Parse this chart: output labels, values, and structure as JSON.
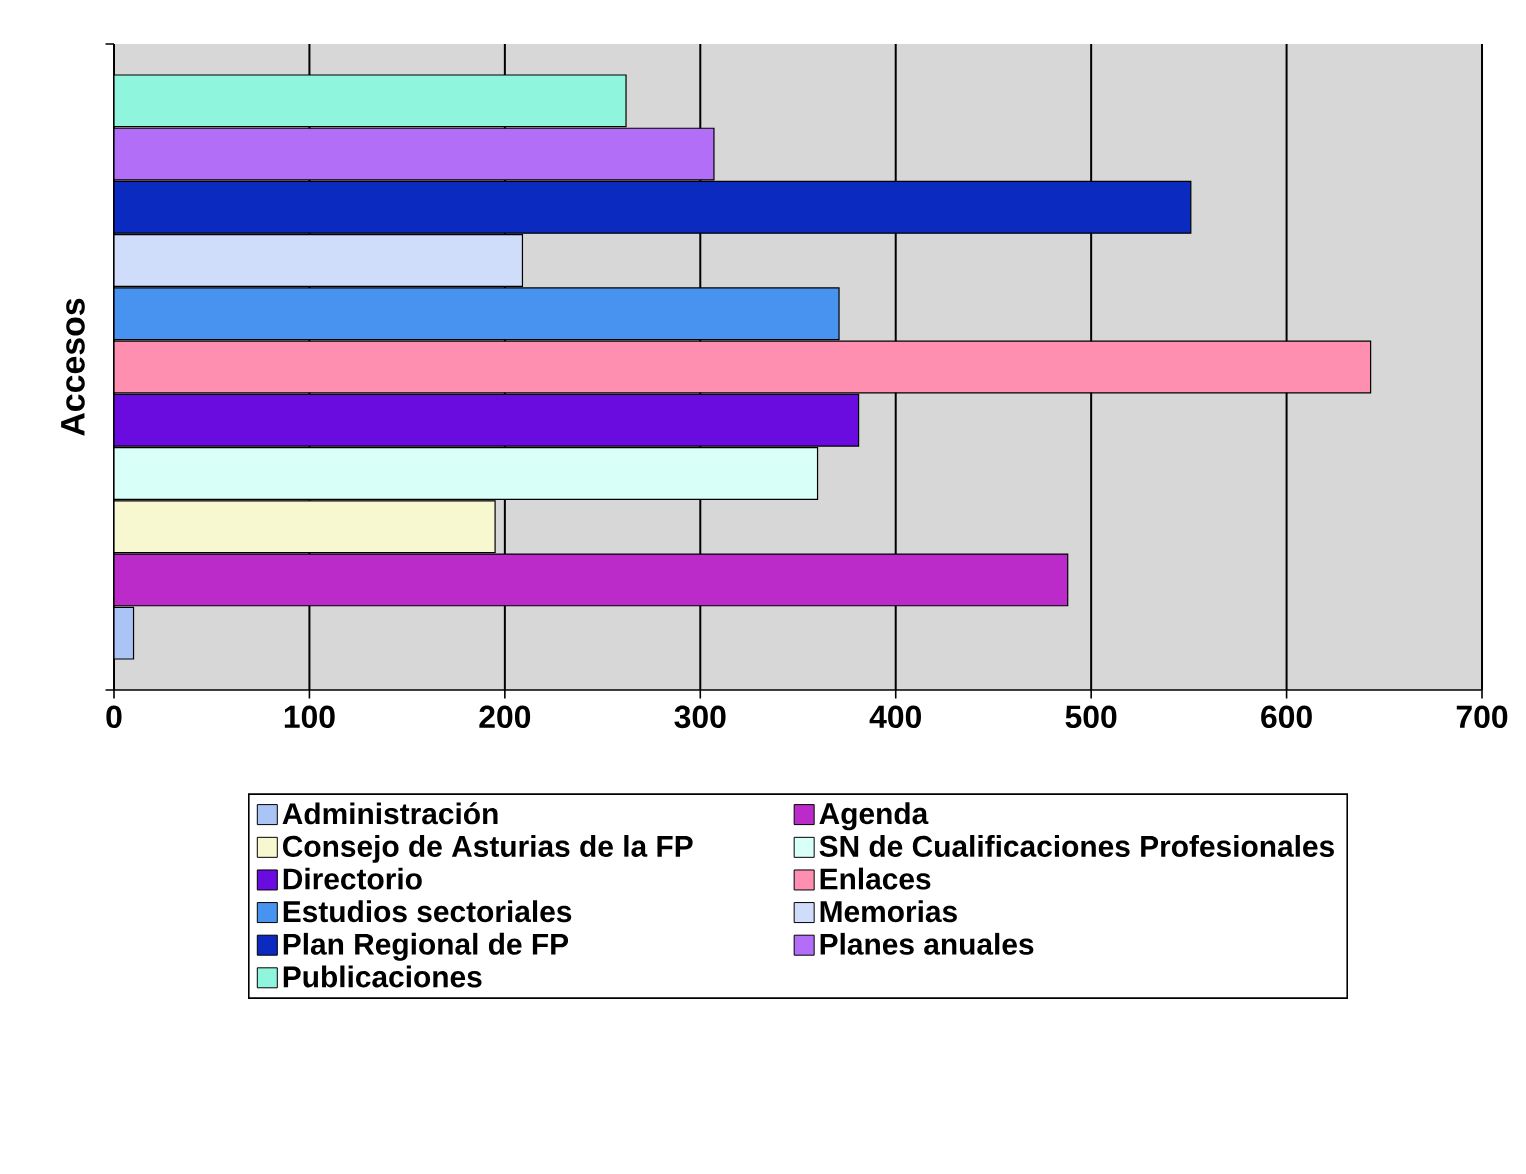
{
  "chart_data": {
    "type": "bar",
    "orientation": "horizontal",
    "ylabel": "Accesos",
    "categories": [
      null
    ],
    "series": [
      {
        "name": "Administración",
        "color": "#a9c4f5",
        "values": [
          10
        ]
      },
      {
        "name": "Agenda",
        "color": "#bb2bc9",
        "values": [
          488
        ]
      },
      {
        "name": "Consejo de Asturias de la FP",
        "color": "#f8f8d0",
        "values": [
          195
        ]
      },
      {
        "name": "SN de Cualificaciones Profesionales",
        "color": "#d8fff8",
        "values": [
          360
        ]
      },
      {
        "name": "Directorio",
        "color": "#6a0ce0",
        "values": [
          381
        ]
      },
      {
        "name": "Enlaces",
        "color": "#ff8fb0",
        "values": [
          643
        ]
      },
      {
        "name": "Estudios sectoriales",
        "color": "#4893f0",
        "values": [
          371
        ]
      },
      {
        "name": "Memorias",
        "color": "#cfdcfa",
        "values": [
          209
        ]
      },
      {
        "name": "Plan Regional de FP",
        "color": "#0a2ac0",
        "values": [
          551
        ]
      },
      {
        "name": "Planes anuales",
        "color": "#b36ef8",
        "values": [
          307
        ]
      },
      {
        "name": "Publicaciones",
        "color": "#8ff5dc",
        "values": [
          262
        ]
      }
    ],
    "xlim": [
      0,
      700
    ],
    "xticks": [
      0,
      100,
      200,
      300,
      400,
      500,
      600,
      700
    ],
    "grid": "x",
    "legend": "bottom",
    "tick_labels": "x"
  }
}
